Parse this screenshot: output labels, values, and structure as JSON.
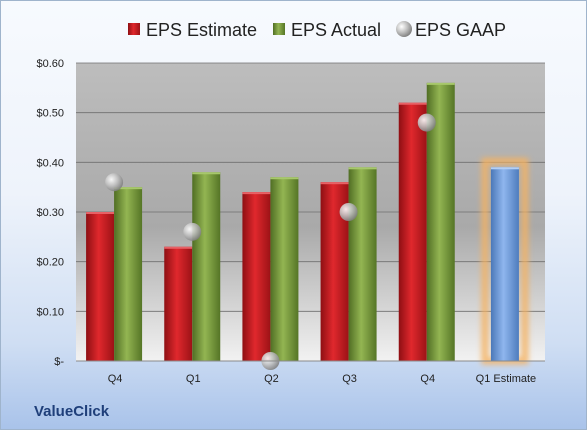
{
  "chart_data": {
    "type": "bar",
    "categories": [
      "Q4",
      "Q1",
      "Q2",
      "Q3",
      "Q4",
      "Q1 Estimate"
    ],
    "series": [
      {
        "name": "EPS Estimate",
        "values": [
          0.3,
          0.23,
          0.34,
          0.36,
          0.52,
          null
        ],
        "color": "#c8191e"
      },
      {
        "name": "EPS Actual",
        "values": [
          0.35,
          0.38,
          0.37,
          0.39,
          0.56,
          null
        ],
        "color": "#79a03a"
      },
      {
        "name": "EPS GAAP",
        "type": "scatter",
        "values": [
          0.36,
          0.26,
          0.0,
          0.3,
          0.48,
          null
        ],
        "color": "#b9b9b9"
      }
    ],
    "forecast": {
      "category": "Q1 Estimate",
      "value": 0.39,
      "color": "#6f9fe0",
      "glow": "#f5b262"
    },
    "y_ticks": [
      "$-",
      "$0.10",
      "$0.20",
      "$0.30",
      "$0.40",
      "$0.50",
      "$0.60"
    ],
    "ylim": [
      0,
      0.6
    ],
    "grid": true,
    "legend_position": "top",
    "title": "",
    "xlabel": "",
    "ylabel": ""
  },
  "footer": {
    "company": "ValueClick"
  }
}
